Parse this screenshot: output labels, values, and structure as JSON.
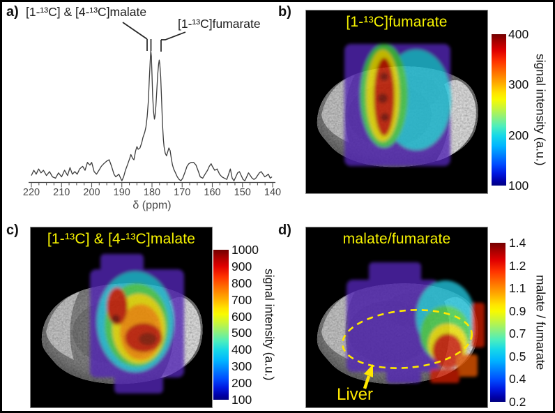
{
  "colors": {
    "annotation_yellow": "#f8f400",
    "image_background": "#000000",
    "figure_background": "#ffffff",
    "spectrum_line": "#3c3c3c",
    "axis_text": "#4a4a4a"
  },
  "panels": {
    "a": {
      "label": "a)",
      "malate_peak_label": "[1-¹³C] & [4-¹³C]malate",
      "fumarate_peak_label": "[1-¹³C]fumarate",
      "axis_label": "δ (ppm)",
      "axis_ticks": [
        "220",
        "210",
        "200",
        "190",
        "180",
        "170",
        "160",
        "150",
        "140"
      ]
    },
    "b": {
      "label": "b)",
      "title": "[1-¹³C]fumarate",
      "colorbar": {
        "ticks": [
          "400",
          "300",
          "200",
          "100"
        ],
        "label": "signal intensity (a.u.)"
      }
    },
    "c": {
      "label": "c)",
      "title": "[1-¹³C] & [4-¹³C]malate",
      "colorbar": {
        "ticks": [
          "1000",
          "900",
          "800",
          "700",
          "600",
          "500",
          "400",
          "300",
          "200",
          "100"
        ],
        "label": "signal intensity (a.u.)"
      }
    },
    "d": {
      "label": "d)",
      "title": "malate/fumarate",
      "liver_annotation": "Liver",
      "colorbar": {
        "ticks": [
          "1.4",
          "1.2",
          "1.1",
          "0.9",
          "0.7",
          "0.5",
          "0.4",
          "0.2"
        ],
        "label": "malate / fumarate"
      }
    }
  },
  "chart_data": [
    {
      "type": "line",
      "panel": "a",
      "xlabel": "δ (ppm)",
      "x_range": [
        220,
        140
      ],
      "x_axis_reversed": true,
      "x_ticks": [
        220,
        210,
        200,
        190,
        180,
        170,
        160,
        150,
        140
      ],
      "minor_tick_step_ppm": 2.5,
      "grid": false,
      "peaks": [
        {
          "label": "[1-¹³C] & [4-¹³C]malate",
          "ppm": 180.4,
          "relative_intensity": 1.0
        },
        {
          "label": "[1-¹³C]fumarate",
          "ppm": 177.6,
          "relative_intensity": 0.93
        }
      ],
      "trace": {
        "ppm": [
          220,
          219.2,
          218.4,
          217.6,
          216.8,
          216,
          215,
          214,
          213,
          212,
          211,
          210,
          209,
          208,
          207.2,
          206.4,
          205.6,
          204.8,
          204,
          203,
          202.2,
          201.4,
          200.6,
          200,
          199.2,
          198.4,
          197.6,
          196.8,
          196,
          195,
          194.2,
          193.4,
          192.6,
          192,
          191,
          190.4,
          190,
          189.4,
          188.8,
          188,
          187.4,
          187,
          186.4,
          186,
          185.4,
          185,
          184.6,
          184,
          183.4,
          183,
          182.4,
          182,
          181.6,
          181.2,
          180.9,
          180.6,
          180.4,
          180.2,
          180,
          179.8,
          179.5,
          179.2,
          179,
          178.7,
          178.4,
          178.1,
          177.8,
          177.6,
          177.4,
          177.1,
          176.8,
          176.5,
          176.2,
          176,
          175.6,
          175.2,
          174.8,
          174.4,
          174,
          173.6,
          173.2,
          172.8,
          172.2,
          171.6,
          171,
          170.4,
          169.8,
          169,
          168.4,
          167.8,
          167,
          166.2,
          165.4,
          164.6,
          164,
          163.2,
          162.4,
          161.6,
          161,
          160.4,
          160,
          159.2,
          158.4,
          157.6,
          156.8,
          156,
          155.2,
          154.6,
          154,
          153.4,
          152.8,
          152.2,
          151.6,
          151,
          150.4,
          149.8,
          149.2,
          148.6,
          148,
          147.4,
          146.8,
          146.2,
          145.6,
          145,
          144.4,
          143.8,
          143.2,
          142.6,
          142,
          141.4,
          140.8,
          140.2
        ],
        "intensity": [
          0.05,
          0.09,
          0.06,
          0.1,
          0.07,
          0.09,
          0.05,
          0.08,
          0.04,
          0.03,
          0.07,
          0.04,
          0.09,
          0.05,
          0.11,
          0.06,
          0.08,
          0.06,
          0.1,
          0.12,
          0.09,
          0.15,
          0.13,
          0.15,
          0.08,
          0.06,
          0.09,
          0.12,
          0.14,
          0.16,
          0.17,
          0.12,
          0.06,
          0.04,
          0.06,
          0.03,
          0.01,
          0.04,
          0.09,
          0.14,
          0.18,
          0.21,
          0.18,
          0.17,
          0.24,
          0.27,
          0.25,
          0.26,
          0.3,
          0.34,
          0.38,
          0.42,
          0.5,
          0.62,
          0.78,
          0.92,
          1.0,
          0.96,
          0.82,
          0.66,
          0.54,
          0.48,
          0.5,
          0.58,
          0.7,
          0.82,
          0.9,
          0.93,
          0.9,
          0.8,
          0.62,
          0.44,
          0.32,
          0.27,
          0.22,
          0.2,
          0.23,
          0.26,
          0.24,
          0.18,
          0.13,
          0.1,
          0.07,
          0.04,
          0.02,
          0.01,
          0.03,
          0.08,
          0.12,
          0.14,
          0.15,
          0.15,
          0.13,
          0.08,
          0.04,
          0.03,
          0.06,
          0.09,
          0.12,
          0.14,
          0.12,
          0.09,
          0.1,
          0.06,
          0.04,
          0.03,
          0.02,
          0.06,
          0.1,
          0.03,
          0.01,
          0.04,
          0.07,
          0.08,
          0.05,
          0.02,
          0.01,
          0.04,
          0.07,
          0.05,
          0.03,
          0.02,
          0.03,
          0.05,
          0.07,
          0.08,
          0.06,
          0.04,
          0.05,
          0.06,
          0.03,
          0.04
        ]
      }
    },
    {
      "type": "heatmap",
      "panel": "b",
      "title": "[1-¹³C]fumarate",
      "colorbar_label": "signal intensity (a.u.)",
      "colorbar_ticks": [
        400,
        300,
        200,
        100
      ],
      "value_range": [
        100,
        400
      ],
      "colormap": "jet",
      "overlay_on": "axial grayscale MRI of mouse body",
      "hotspots": [
        {
          "location": "vertical band center-left of overlay",
          "approx_value": 400
        },
        {
          "location": "ring around band",
          "approx_value": 300
        },
        {
          "location": "right-center region",
          "approx_value": 200
        },
        {
          "location": "overlay rim",
          "approx_value": 120
        }
      ]
    },
    {
      "type": "heatmap",
      "panel": "c",
      "title": "[1-¹³C] & [4-¹³C]malate",
      "colorbar_label": "signal intensity (a.u.)",
      "colorbar_ticks": [
        1000,
        900,
        800,
        700,
        600,
        500,
        400,
        300,
        200,
        100
      ],
      "value_range": [
        100,
        1000
      ],
      "colormap": "jet",
      "overlay_on": "axial grayscale MRI of mouse body",
      "hotspots": [
        {
          "location": "upper center-left of overlay",
          "approx_value": 950
        },
        {
          "location": "lower-right (liver region)",
          "approx_value": 880
        },
        {
          "location": "mid overlay",
          "approx_value": 500
        },
        {
          "location": "overlay rim",
          "approx_value": 150
        }
      ]
    },
    {
      "type": "heatmap",
      "panel": "d",
      "title": "malate/fumarate",
      "colorbar_label": "malate / fumarate",
      "colorbar_ticks": [
        1.4,
        1.2,
        1.1,
        0.9,
        0.7,
        0.5,
        0.4,
        0.2
      ],
      "value_range": [
        0.2,
        1.4
      ],
      "colormap": "jet",
      "overlay_on": "axial grayscale MRI of mouse body",
      "annotations": [
        {
          "label": "Liver",
          "marker": "dashed yellow outline with arrow"
        }
      ],
      "hotspots": [
        {
          "location": "lower-right inside liver outline",
          "approx_value": 1.3
        },
        {
          "location": "center of liver outline",
          "approx_value": 0.7
        },
        {
          "location": "upper overlay region",
          "approx_value": 0.3
        }
      ]
    }
  ]
}
